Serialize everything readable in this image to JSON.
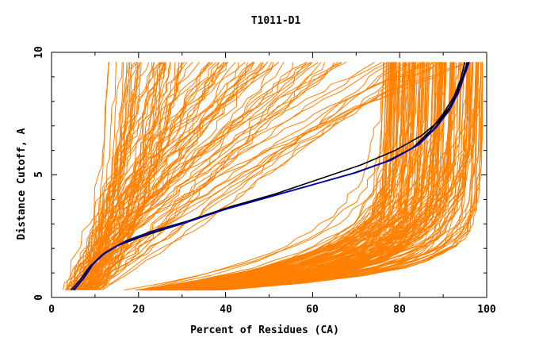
{
  "chart_data": {
    "type": "line",
    "title": "T1011-D1",
    "xlabel": "Percent of Residues (CA)",
    "ylabel": "Distance Cutoff, A",
    "xlim": [
      0,
      100
    ],
    "ylim": [
      0,
      10
    ],
    "xticks": [
      "0",
      "20",
      "40",
      "60",
      "80",
      "100"
    ],
    "yticks": [
      "0",
      "5",
      "10"
    ],
    "colors": {
      "models": "#ff8000",
      "highlight_blue": "#0000cc",
      "highlight_black": "#000000"
    },
    "highlight_series": [
      {
        "name": "highlight-black-1",
        "color": "#000000",
        "points": [
          [
            5,
            0.3
          ],
          [
            7,
            0.7
          ],
          [
            9,
            1.3
          ],
          [
            12,
            1.8
          ],
          [
            16,
            2.2
          ],
          [
            22,
            2.6
          ],
          [
            30,
            3.0
          ],
          [
            40,
            3.6
          ],
          [
            50,
            4.1
          ],
          [
            60,
            4.6
          ],
          [
            70,
            5.1
          ],
          [
            78,
            5.6
          ],
          [
            84,
            6.2
          ],
          [
            88,
            6.9
          ],
          [
            91,
            7.6
          ],
          [
            93,
            8.3
          ],
          [
            94.5,
            9.0
          ],
          [
            95.5,
            9.6
          ]
        ]
      },
      {
        "name": "highlight-black-2",
        "color": "#000000",
        "points": [
          [
            4.5,
            0.3
          ],
          [
            6.5,
            0.7
          ],
          [
            8.5,
            1.2
          ],
          [
            11.5,
            1.7
          ],
          [
            15,
            2.1
          ],
          [
            21,
            2.5
          ],
          [
            29,
            2.95
          ],
          [
            39,
            3.55
          ],
          [
            49,
            4.05
          ],
          [
            59,
            4.55
          ],
          [
            69,
            5.05
          ],
          [
            77,
            5.55
          ],
          [
            83,
            6.1
          ],
          [
            87,
            6.8
          ],
          [
            90,
            7.5
          ],
          [
            92.5,
            8.2
          ],
          [
            94,
            8.9
          ],
          [
            95,
            9.6
          ]
        ]
      },
      {
        "name": "highlight-black-3",
        "color": "#000000",
        "points": [
          [
            5.2,
            0.3
          ],
          [
            7.5,
            0.8
          ],
          [
            9.5,
            1.35
          ],
          [
            12.5,
            1.85
          ],
          [
            17,
            2.3
          ],
          [
            23,
            2.7
          ],
          [
            31,
            3.1
          ],
          [
            41,
            3.7
          ],
          [
            51,
            4.2
          ],
          [
            61,
            4.8
          ],
          [
            71,
            5.4
          ],
          [
            79,
            6.0
          ],
          [
            85,
            6.6
          ],
          [
            89,
            7.2
          ],
          [
            92,
            7.9
          ],
          [
            94,
            8.6
          ],
          [
            95.8,
            9.6
          ]
        ]
      },
      {
        "name": "highlight-blue-1",
        "color": "#0000cc",
        "points": [
          [
            5,
            0.3
          ],
          [
            7.2,
            0.75
          ],
          [
            9.2,
            1.3
          ],
          [
            12.2,
            1.8
          ],
          [
            16.5,
            2.25
          ],
          [
            22.5,
            2.65
          ],
          [
            30.5,
            3.05
          ],
          [
            40.5,
            3.62
          ],
          [
            50.5,
            4.12
          ],
          [
            60.5,
            4.62
          ],
          [
            70.5,
            5.12
          ],
          [
            78.5,
            5.65
          ],
          [
            84.5,
            6.25
          ],
          [
            88.5,
            6.95
          ],
          [
            91.5,
            7.65
          ],
          [
            93.5,
            8.35
          ],
          [
            95,
            9.1
          ],
          [
            96,
            9.6
          ]
        ]
      }
    ]
  }
}
